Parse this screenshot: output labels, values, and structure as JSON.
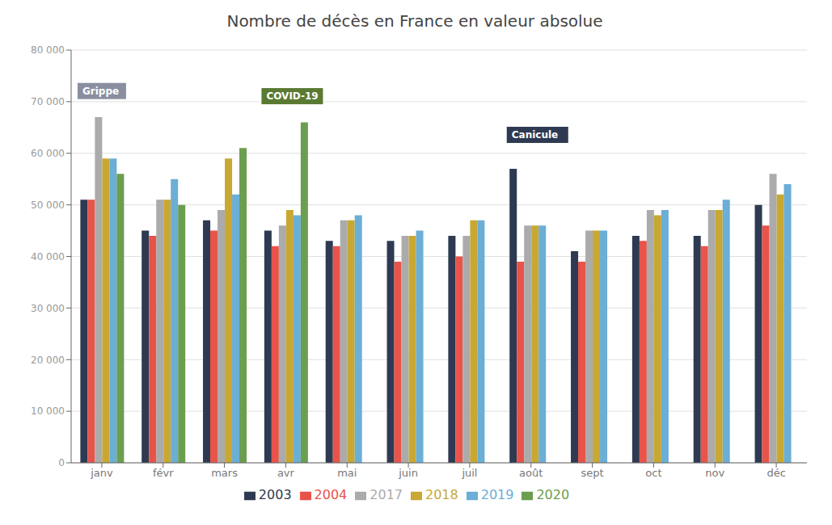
{
  "chart_data": {
    "type": "bar",
    "title": "Nombre de décès en France en valeur absolue",
    "categories": [
      "janv",
      "févr",
      "mars",
      "avr",
      "mai",
      "juin",
      "juil",
      "août",
      "sept",
      "oct",
      "nov",
      "déc"
    ],
    "series": [
      {
        "name": "2003",
        "color": "#2E3A52",
        "values": [
          51000,
          45000,
          47000,
          45000,
          43000,
          43000,
          44000,
          57000,
          41000,
          44000,
          44000,
          50000
        ]
      },
      {
        "name": "2004",
        "color": "#E8534A",
        "values": [
          51000,
          44000,
          45000,
          42000,
          42000,
          39000,
          40000,
          39000,
          39000,
          43000,
          42000,
          46000
        ]
      },
      {
        "name": "2017",
        "color": "#ABABAB",
        "values": [
          67000,
          51000,
          49000,
          46000,
          47000,
          44000,
          44000,
          46000,
          45000,
          49000,
          49000,
          56000
        ]
      },
      {
        "name": "2018",
        "color": "#C8A832",
        "values": [
          59000,
          51000,
          59000,
          49000,
          47000,
          44000,
          47000,
          46000,
          45000,
          48000,
          49000,
          52000
        ]
      },
      {
        "name": "2019",
        "color": "#6BAED6",
        "values": [
          59000,
          55000,
          52000,
          48000,
          48000,
          45000,
          47000,
          46000,
          45000,
          49000,
          51000,
          54000
        ]
      },
      {
        "name": "2020",
        "color": "#6B9E4E",
        "values": [
          56000,
          50000,
          61000,
          66000,
          0,
          0,
          0,
          0,
          0,
          0,
          0,
          0
        ]
      }
    ],
    "ylim": [
      0,
      80000
    ],
    "yticks": [
      0,
      {
        "value": 10000,
        "label": "10 000"
      },
      {
        "value": 20000,
        "label": "20 000"
      },
      {
        "value": 30000,
        "label": "30 000"
      },
      {
        "value": 40000,
        "label": "40 000"
      },
      {
        "value": 50000,
        "label": "50 000"
      },
      {
        "value": 60000,
        "label": "60 000"
      },
      {
        "value": 70000,
        "label": "70 000"
      },
      {
        "value": 80000,
        "label": "80 000"
      }
    ],
    "grid": true,
    "legend": "bottom",
    "annotations": [
      {
        "text": "Grippe",
        "x": "janv",
        "y": 70500,
        "color": "#8A8FA0"
      },
      {
        "text": "COVID-19",
        "x": "avr",
        "y": 69500,
        "color": "#5A7A32"
      },
      {
        "text": "Canicule",
        "x": "août",
        "y": 62000,
        "color": "#2E3A52"
      }
    ]
  }
}
